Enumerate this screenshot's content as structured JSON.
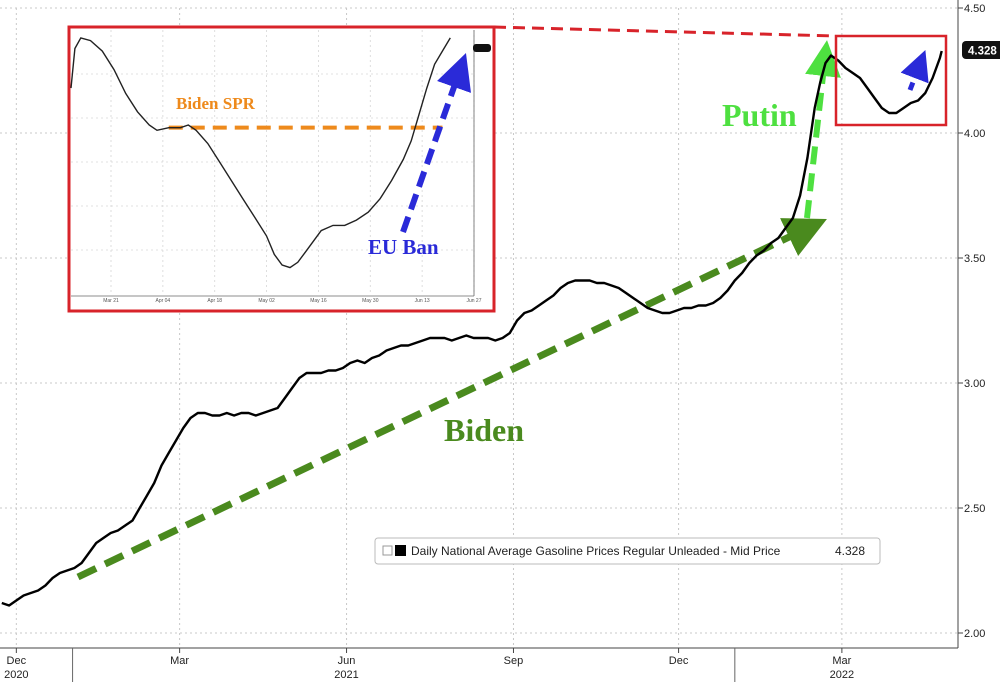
{
  "chart_data": {
    "type": "line",
    "series": [
      {
        "name": "Daily National Average Gasoline Prices Regular Unleaded - Mid Price",
        "last_value_label": "4.328",
        "color": "#000000",
        "points": [
          [
            "2020-11-23",
            2.12
          ],
          [
            "2020-11-27",
            2.11
          ],
          [
            "2020-12-01",
            2.13
          ],
          [
            "2020-12-05",
            2.15
          ],
          [
            "2020-12-09",
            2.16
          ],
          [
            "2020-12-13",
            2.17
          ],
          [
            "2020-12-17",
            2.19
          ],
          [
            "2020-12-21",
            2.22
          ],
          [
            "2020-12-25",
            2.24
          ],
          [
            "2020-12-29",
            2.25
          ],
          [
            "2021-01-02",
            2.26
          ],
          [
            "2021-01-06",
            2.28
          ],
          [
            "2021-01-10",
            2.32
          ],
          [
            "2021-01-14",
            2.36
          ],
          [
            "2021-01-18",
            2.38
          ],
          [
            "2021-01-22",
            2.4
          ],
          [
            "2021-01-26",
            2.41
          ],
          [
            "2021-01-30",
            2.43
          ],
          [
            "2021-02-03",
            2.45
          ],
          [
            "2021-02-07",
            2.5
          ],
          [
            "2021-02-11",
            2.55
          ],
          [
            "2021-02-15",
            2.6
          ],
          [
            "2021-02-19",
            2.67
          ],
          [
            "2021-02-23",
            2.72
          ],
          [
            "2021-02-27",
            2.77
          ],
          [
            "2021-03-03",
            2.82
          ],
          [
            "2021-03-07",
            2.86
          ],
          [
            "2021-03-11",
            2.88
          ],
          [
            "2021-03-15",
            2.88
          ],
          [
            "2021-03-19",
            2.87
          ],
          [
            "2021-03-23",
            2.87
          ],
          [
            "2021-03-27",
            2.88
          ],
          [
            "2021-03-31",
            2.87
          ],
          [
            "2021-04-04",
            2.88
          ],
          [
            "2021-04-08",
            2.88
          ],
          [
            "2021-04-12",
            2.87
          ],
          [
            "2021-04-16",
            2.88
          ],
          [
            "2021-04-20",
            2.89
          ],
          [
            "2021-04-24",
            2.9
          ],
          [
            "2021-04-28",
            2.94
          ],
          [
            "2021-05-02",
            2.98
          ],
          [
            "2021-05-06",
            3.02
          ],
          [
            "2021-05-10",
            3.04
          ],
          [
            "2021-05-14",
            3.04
          ],
          [
            "2021-05-18",
            3.04
          ],
          [
            "2021-05-22",
            3.05
          ],
          [
            "2021-05-26",
            3.05
          ],
          [
            "2021-05-30",
            3.06
          ],
          [
            "2021-06-03",
            3.08
          ],
          [
            "2021-06-07",
            3.09
          ],
          [
            "2021-06-11",
            3.08
          ],
          [
            "2021-06-15",
            3.1
          ],
          [
            "2021-06-19",
            3.11
          ],
          [
            "2021-06-23",
            3.13
          ],
          [
            "2021-06-27",
            3.14
          ],
          [
            "2021-07-01",
            3.15
          ],
          [
            "2021-07-05",
            3.15
          ],
          [
            "2021-07-09",
            3.16
          ],
          [
            "2021-07-13",
            3.17
          ],
          [
            "2021-07-17",
            3.18
          ],
          [
            "2021-07-21",
            3.18
          ],
          [
            "2021-07-25",
            3.18
          ],
          [
            "2021-07-29",
            3.17
          ],
          [
            "2021-08-02",
            3.18
          ],
          [
            "2021-08-06",
            3.19
          ],
          [
            "2021-08-10",
            3.18
          ],
          [
            "2021-08-14",
            3.18
          ],
          [
            "2021-08-18",
            3.18
          ],
          [
            "2021-08-22",
            3.17
          ],
          [
            "2021-08-26",
            3.18
          ],
          [
            "2021-08-30",
            3.2
          ],
          [
            "2021-09-03",
            3.25
          ],
          [
            "2021-09-07",
            3.28
          ],
          [
            "2021-09-11",
            3.29
          ],
          [
            "2021-09-15",
            3.31
          ],
          [
            "2021-09-19",
            3.33
          ],
          [
            "2021-09-23",
            3.35
          ],
          [
            "2021-09-27",
            3.38
          ],
          [
            "2021-10-01",
            3.4
          ],
          [
            "2021-10-05",
            3.41
          ],
          [
            "2021-10-09",
            3.41
          ],
          [
            "2021-10-13",
            3.41
          ],
          [
            "2021-10-17",
            3.4
          ],
          [
            "2021-10-21",
            3.4
          ],
          [
            "2021-10-25",
            3.39
          ],
          [
            "2021-10-29",
            3.38
          ],
          [
            "2021-11-02",
            3.36
          ],
          [
            "2021-11-06",
            3.34
          ],
          [
            "2021-11-10",
            3.32
          ],
          [
            "2021-11-14",
            3.3
          ],
          [
            "2021-11-18",
            3.29
          ],
          [
            "2021-11-22",
            3.28
          ],
          [
            "2021-11-26",
            3.28
          ],
          [
            "2021-11-30",
            3.29
          ],
          [
            "2021-12-04",
            3.3
          ],
          [
            "2021-12-08",
            3.3
          ],
          [
            "2021-12-12",
            3.31
          ],
          [
            "2021-12-16",
            3.31
          ],
          [
            "2021-12-20",
            3.32
          ],
          [
            "2021-12-24",
            3.34
          ],
          [
            "2021-12-28",
            3.37
          ],
          [
            "2022-01-01",
            3.41
          ],
          [
            "2022-01-05",
            3.44
          ],
          [
            "2022-01-09",
            3.48
          ],
          [
            "2022-01-13",
            3.51
          ],
          [
            "2022-01-17",
            3.53
          ],
          [
            "2022-01-21",
            3.56
          ],
          [
            "2022-01-25",
            3.58
          ],
          [
            "2022-01-29",
            3.62
          ],
          [
            "2022-02-02",
            3.66
          ],
          [
            "2022-02-06",
            3.75
          ],
          [
            "2022-02-10",
            3.9
          ],
          [
            "2022-02-14",
            4.1
          ],
          [
            "2022-02-17",
            4.2
          ],
          [
            "2022-02-20",
            4.28
          ],
          [
            "2022-02-23",
            4.31
          ],
          [
            "2022-02-27",
            4.29
          ],
          [
            "2022-03-03",
            4.26
          ],
          [
            "2022-03-07",
            4.24
          ],
          [
            "2022-03-11",
            4.22
          ],
          [
            "2022-03-15",
            4.18
          ],
          [
            "2022-03-19",
            4.14
          ],
          [
            "2022-03-23",
            4.1
          ],
          [
            "2022-03-27",
            4.08
          ],
          [
            "2022-03-31",
            4.08
          ],
          [
            "2022-04-04",
            4.1
          ],
          [
            "2022-04-08",
            4.12
          ],
          [
            "2022-04-12",
            4.13
          ],
          [
            "2022-04-16",
            4.16
          ],
          [
            "2022-04-20",
            4.22
          ],
          [
            "2022-04-24",
            4.3
          ],
          [
            "2022-04-25",
            4.328
          ]
        ]
      }
    ],
    "x_ticks": [
      {
        "date": "2020-12-01",
        "label": "Dec"
      },
      {
        "date": "2021-03-01",
        "label": "Mar"
      },
      {
        "date": "2021-06-01",
        "label": "Jun"
      },
      {
        "date": "2021-09-01",
        "label": "Sep"
      },
      {
        "date": "2021-12-01",
        "label": "Dec"
      },
      {
        "date": "2022-03-01",
        "label": "Mar"
      }
    ],
    "year_labels": [
      {
        "date": "2020-12-01",
        "label": "2020"
      },
      {
        "date": "2021-06-01",
        "label": "2021"
      },
      {
        "date": "2022-03-01",
        "label": "2022"
      }
    ],
    "y_ticks": [
      {
        "value": 2.0,
        "label": "2.00"
      },
      {
        "value": 2.5,
        "label": "2.50"
      },
      {
        "value": 3.0,
        "label": "3.00"
      },
      {
        "value": 3.5,
        "label": "3.50"
      },
      {
        "value": 4.0,
        "label": "4.00"
      },
      {
        "value": 4.5,
        "label": "4.50"
      }
    ],
    "xlim": [
      "2020-11-22",
      "2022-05-04"
    ],
    "ylim": [
      1.94,
      4.5
    ],
    "grid": true,
    "legend_position": "bottom-right",
    "annotations": {
      "biden_label": "Biden",
      "putin_label": "Putin",
      "inset_spr_label": "Biden SPR",
      "inset_eu_label": "EU Ban"
    },
    "inset": {
      "x_labels": [
        "Mar 21",
        "Apr 04",
        "Apr 18",
        "May 02",
        "May 16",
        "May 30",
        "Jun 13",
        "Jun 27"
      ],
      "points": [
        [
          0,
          0.78
        ],
        [
          0.01,
          0.93
        ],
        [
          0.025,
          0.97
        ],
        [
          0.05,
          0.96
        ],
        [
          0.08,
          0.92
        ],
        [
          0.11,
          0.85
        ],
        [
          0.14,
          0.76
        ],
        [
          0.17,
          0.69
        ],
        [
          0.2,
          0.64
        ],
        [
          0.22,
          0.62
        ],
        [
          0.25,
          0.63
        ],
        [
          0.28,
          0.63
        ],
        [
          0.3,
          0.64
        ],
        [
          0.32,
          0.62
        ],
        [
          0.35,
          0.57
        ],
        [
          0.38,
          0.5
        ],
        [
          0.41,
          0.43
        ],
        [
          0.44,
          0.36
        ],
        [
          0.47,
          0.29
        ],
        [
          0.5,
          0.22
        ],
        [
          0.52,
          0.15
        ],
        [
          0.54,
          0.11
        ],
        [
          0.56,
          0.1
        ],
        [
          0.58,
          0.12
        ],
        [
          0.6,
          0.16
        ],
        [
          0.62,
          0.2
        ],
        [
          0.64,
          0.24
        ],
        [
          0.67,
          0.26
        ],
        [
          0.7,
          0.26
        ],
        [
          0.73,
          0.28
        ],
        [
          0.76,
          0.31
        ],
        [
          0.79,
          0.36
        ],
        [
          0.82,
          0.43
        ],
        [
          0.85,
          0.51
        ],
        [
          0.87,
          0.58
        ],
        [
          0.89,
          0.68
        ],
        [
          0.91,
          0.78
        ],
        [
          0.93,
          0.87
        ],
        [
          0.95,
          0.92
        ],
        [
          0.97,
          0.97
        ]
      ],
      "spr_level": 0.63
    }
  }
}
